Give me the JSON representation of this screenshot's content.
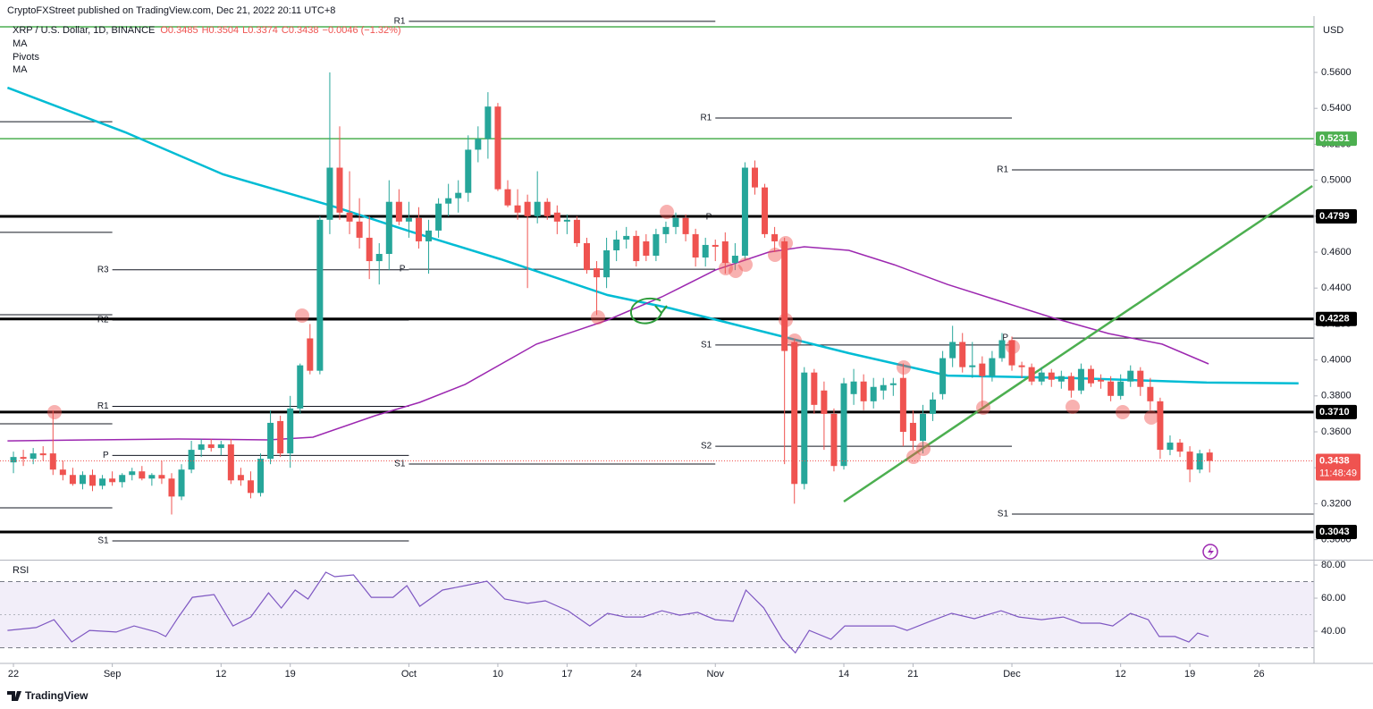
{
  "chart_data": {
    "type": "candlestick",
    "header": "CryptoFXStreet published on TradingView.com, Dec 21, 2022 20:11 UTC+8",
    "title": "XRP / U.S. Dollar, 1D, BINANCE",
    "ohlc_legend": [
      "O0.3485",
      "H0.3504",
      "L0.3374",
      "C0.3438",
      "−0.0046 (−1.32%)"
    ],
    "pivots_name": "Pivots",
    "currency": "USD",
    "footer": "TradingView",
    "up_color": "#26a69a",
    "down_color": "#ef5350",
    "xlim": [
      -1.36,
      131.56
    ],
    "xticks": [
      {
        "value": 0,
        "label": "22"
      },
      {
        "value": 10,
        "label": "Sep"
      },
      {
        "value": 21,
        "label": "12"
      },
      {
        "value": 28,
        "label": "19"
      },
      {
        "value": 40,
        "label": "Oct"
      },
      {
        "value": 49,
        "label": "10"
      },
      {
        "value": 56,
        "label": "17"
      },
      {
        "value": 63,
        "label": "24"
      },
      {
        "value": 71,
        "label": "Nov"
      },
      {
        "value": 84,
        "label": "14"
      },
      {
        "value": 91,
        "label": "21"
      },
      {
        "value": 101,
        "label": "Dec"
      },
      {
        "value": 112,
        "label": "12"
      },
      {
        "value": 119,
        "label": "19"
      },
      {
        "value": 126,
        "label": "26"
      }
    ],
    "ylim": [
      0.29,
      0.59
    ],
    "yticks": [
      {
        "value": 0.3,
        "label": "0.3000"
      },
      {
        "value": 0.32,
        "label": "0.3200"
      },
      {
        "value": 0.34,
        "label": "0.3400"
      },
      {
        "value": 0.36,
        "label": "0.3600"
      },
      {
        "value": 0.38,
        "label": "0.3800"
      },
      {
        "value": 0.4,
        "label": "0.4000"
      },
      {
        "value": 0.42,
        "label": "0.4200"
      },
      {
        "value": 0.44,
        "label": "0.4400"
      },
      {
        "value": 0.46,
        "label": "0.4600"
      },
      {
        "value": 0.48,
        "label": "0.4800"
      },
      {
        "value": 0.5,
        "label": "0.5000"
      },
      {
        "value": 0.52,
        "label": "0.5200"
      },
      {
        "value": 0.54,
        "label": "0.5400"
      },
      {
        "value": 0.56,
        "label": "0.5600"
      }
    ],
    "open": [
      0.343,
      0.346,
      0.345,
      0.348,
      0.348,
      0.339,
      0.336,
      0.331,
      0.336,
      0.33,
      0.334,
      0.332,
      0.336,
      0.338,
      0.334,
      0.336,
      0.334,
      0.324,
      0.339,
      0.35,
      0.353,
      0.351,
      0.353,
      0.336,
      0.333,
      0.326,
      0.345,
      0.366,
      0.348,
      0.373,
      0.412,
      0.394,
      0.478,
      0.507,
      0.482,
      0.477,
      0.468,
      0.455,
      0.459,
      0.488,
      0.477,
      0.479,
      0.466,
      0.472,
      0.487,
      0.49,
      0.493,
      0.517,
      0.523,
      0.541,
      0.495,
      0.486,
      0.488,
      0.48,
      0.488,
      0.482,
      0.477,
      0.478,
      0.465,
      0.451,
      0.446,
      0.461,
      0.467,
      0.469,
      0.466,
      0.458,
      0.47,
      0.474,
      0.479,
      0.47,
      0.457,
      0.464,
      0.466,
      0.454,
      0.458,
      0.507,
      0.496,
      0.47,
      0.466,
      0.41,
      0.331,
      0.393,
      0.383,
      0.37,
      0.341,
      0.381,
      0.388,
      0.377,
      0.383,
      0.386,
      0.39,
      0.365,
      0.355,
      0.37,
      0.381,
      0.401,
      0.41,
      0.396,
      0.398,
      0.391,
      0.401,
      0.411,
      0.397,
      0.396,
      0.388,
      0.393,
      0.388,
      0.391,
      0.383,
      0.395,
      0.389,
      0.388,
      0.38,
      0.388,
      0.394,
      0.385,
      0.377,
      0.35,
      0.354,
      0.349,
      0.339,
      0.3485
    ],
    "high": [
      0.349,
      0.35,
      0.351,
      0.352,
      0.372,
      0.344,
      0.34,
      0.338,
      0.339,
      0.336,
      0.338,
      0.337,
      0.34,
      0.341,
      0.337,
      0.344,
      0.337,
      0.342,
      0.355,
      0.356,
      0.356,
      0.355,
      0.356,
      0.34,
      0.338,
      0.348,
      0.372,
      0.369,
      0.38,
      0.398,
      0.42,
      0.48,
      0.56,
      0.53,
      0.505,
      0.49,
      0.48,
      0.465,
      0.5,
      0.495,
      0.488,
      0.485,
      0.478,
      0.49,
      0.498,
      0.5,
      0.525,
      0.53,
      0.549,
      0.543,
      0.5,
      0.495,
      0.492,
      0.505,
      0.49,
      0.486,
      0.481,
      0.48,
      0.468,
      0.455,
      0.468,
      0.472,
      0.474,
      0.472,
      0.47,
      0.473,
      0.477,
      0.482,
      0.481,
      0.473,
      0.468,
      0.467,
      0.471,
      0.465,
      0.51,
      0.511,
      0.498,
      0.474,
      0.468,
      0.412,
      0.396,
      0.395,
      0.388,
      0.373,
      0.39,
      0.395,
      0.392,
      0.39,
      0.39,
      0.39,
      0.398,
      0.372,
      0.375,
      0.382,
      0.405,
      0.419,
      0.415,
      0.41,
      0.402,
      0.405,
      0.415,
      0.413,
      0.399,
      0.398,
      0.396,
      0.395,
      0.394,
      0.393,
      0.398,
      0.397,
      0.392,
      0.391,
      0.392,
      0.397,
      0.396,
      0.39,
      0.379,
      0.358,
      0.356,
      0.352,
      0.35,
      0.3504
    ],
    "low": [
      0.337,
      0.341,
      0.342,
      0.344,
      0.336,
      0.333,
      0.33,
      0.328,
      0.327,
      0.328,
      0.33,
      0.329,
      0.333,
      0.333,
      0.33,
      0.331,
      0.314,
      0.322,
      0.337,
      0.346,
      0.349,
      0.347,
      0.331,
      0.33,
      0.323,
      0.324,
      0.342,
      0.346,
      0.34,
      0.37,
      0.392,
      0.392,
      0.47,
      0.478,
      0.47,
      0.462,
      0.445,
      0.442,
      0.45,
      0.475,
      0.468,
      0.462,
      0.448,
      0.468,
      0.48,
      0.482,
      0.488,
      0.51,
      0.512,
      0.494,
      0.485,
      0.478,
      0.44,
      0.476,
      0.478,
      0.47,
      0.47,
      0.463,
      0.448,
      0.425,
      0.44,
      0.455,
      0.462,
      0.452,
      0.455,
      0.455,
      0.465,
      0.47,
      0.466,
      0.452,
      0.452,
      0.455,
      0.448,
      0.45,
      0.456,
      0.492,
      0.468,
      0.46,
      0.342,
      0.32,
      0.328,
      0.37,
      0.35,
      0.338,
      0.339,
      0.375,
      0.372,
      0.373,
      0.378,
      0.38,
      0.352,
      0.35,
      0.348,
      0.366,
      0.378,
      0.396,
      0.393,
      0.39,
      0.374,
      0.388,
      0.399,
      0.394,
      0.39,
      0.386,
      0.386,
      0.385,
      0.384,
      0.379,
      0.381,
      0.385,
      0.384,
      0.377,
      0.378,
      0.385,
      0.38,
      0.372,
      0.345,
      0.347,
      0.346,
      0.332,
      0.337,
      0.3374
    ],
    "close": [
      0.346,
      0.345,
      0.348,
      0.347,
      0.339,
      0.336,
      0.331,
      0.336,
      0.33,
      0.334,
      0.332,
      0.336,
      0.338,
      0.334,
      0.336,
      0.334,
      0.324,
      0.339,
      0.35,
      0.353,
      0.351,
      0.353,
      0.333,
      0.333,
      0.326,
      0.345,
      0.365,
      0.348,
      0.373,
      0.397,
      0.394,
      0.478,
      0.507,
      0.482,
      0.477,
      0.468,
      0.455,
      0.459,
      0.488,
      0.477,
      0.479,
      0.466,
      0.472,
      0.487,
      0.49,
      0.493,
      0.517,
      0.523,
      0.541,
      0.495,
      0.486,
      0.482,
      0.48,
      0.488,
      0.48,
      0.477,
      0.478,
      0.465,
      0.45,
      0.446,
      0.461,
      0.467,
      0.469,
      0.455,
      0.458,
      0.47,
      0.474,
      0.479,
      0.47,
      0.457,
      0.464,
      0.463,
      0.454,
      0.458,
      0.507,
      0.496,
      0.47,
      0.466,
      0.405,
      0.331,
      0.393,
      0.375,
      0.37,
      0.341,
      0.387,
      0.388,
      0.377,
      0.385,
      0.386,
      0.387,
      0.36,
      0.355,
      0.37,
      0.378,
      0.401,
      0.41,
      0.396,
      0.397,
      0.391,
      0.401,
      0.411,
      0.397,
      0.396,
      0.388,
      0.393,
      0.389,
      0.391,
      0.383,
      0.395,
      0.387,
      0.388,
      0.38,
      0.388,
      0.394,
      0.385,
      0.377,
      0.35,
      0.354,
      0.349,
      0.339,
      0.348,
      0.3438
    ],
    "ma": [
      {
        "name": "MA",
        "color": "#00bcd4",
        "x": [
          -0.6,
          11.3,
          21.2,
          32.1,
          40.2,
          49.3,
          60.1,
          66.5,
          75.5,
          84.5,
          94.5,
          107.1,
          120.7,
          130
        ],
        "values": [
          0.5515,
          0.5267,
          0.5033,
          0.4859,
          0.4714,
          0.456,
          0.4361,
          0.4287,
          0.4162,
          0.4038,
          0.3913,
          0.3899,
          0.3874,
          0.387
        ]
      },
      {
        "name": "MA",
        "color": "#9c27b0",
        "x": [
          -0.6,
          7.7,
          16.7,
          25.8,
          30.3,
          36.6,
          41.1,
          45.7,
          52.9,
          60.1,
          65.6,
          71,
          76.4,
          80,
          84.5,
          89.1,
          94.5,
          99.9,
          105.3,
          110.8,
          116.2,
          120.9
        ],
        "values": [
          0.355,
          0.3555,
          0.356,
          0.3555,
          0.357,
          0.369,
          0.3764,
          0.3864,
          0.4088,
          0.4222,
          0.4351,
          0.45,
          0.46,
          0.463,
          0.461,
          0.453,
          0.442,
          0.4326,
          0.4232,
          0.4147,
          0.4088,
          0.3978
        ]
      }
    ],
    "trendline": {
      "color": "#4caf50",
      "x": [
        84,
        131.4
      ],
      "values": [
        0.3212,
        0.4968
      ]
    },
    "levels": [
      {
        "value": 0.5854,
        "color": "#4caf50"
      },
      {
        "value": 0.5231,
        "label": "0.5231",
        "color": "#4caf50"
      },
      {
        "value": 0.4799,
        "label": "0.4799",
        "color": "#000000"
      },
      {
        "value": 0.4228,
        "label": "0.4228",
        "color": "#000000"
      },
      {
        "value": 0.371,
        "label": "0.3710",
        "color": "#000000"
      },
      {
        "value": 0.3043,
        "label": "0.3043",
        "color": "#000000"
      }
    ],
    "pivots": [
      {
        "value": 0.5326,
        "from": -1.36,
        "to": 10
      },
      {
        "value": 0.471,
        "from": -1.36,
        "to": 10
      },
      {
        "value": 0.4252,
        "from": -1.36,
        "to": 10
      },
      {
        "value": 0.3645,
        "from": -1.36,
        "to": 10
      },
      {
        "value": 0.3177,
        "from": -1.36,
        "to": 10
      },
      {
        "label": "R3",
        "value": 0.4502,
        "from": 10,
        "to": 40
      },
      {
        "label": "R2",
        "value": 0.4222,
        "from": 10,
        "to": 40
      },
      {
        "label": "R1",
        "value": 0.3742,
        "from": 10,
        "to": 40
      },
      {
        "label": "P",
        "value": 0.3469,
        "from": 10,
        "to": 40
      },
      {
        "label": "S1",
        "value": 0.2993,
        "from": 10,
        "to": 40
      },
      {
        "label": "R1",
        "value": 0.5884,
        "from": 40,
        "to": 71
      },
      {
        "label": "P",
        "value": 0.4505,
        "from": 40,
        "to": 71
      },
      {
        "label": "S1",
        "value": 0.3421,
        "from": 40,
        "to": 71
      },
      {
        "label": "R1",
        "value": 0.5346,
        "from": 71,
        "to": 101
      },
      {
        "label": "P",
        "value": 0.4794,
        "from": 71,
        "to": 101
      },
      {
        "label": "S1",
        "value": 0.4083,
        "from": 71,
        "to": 101
      },
      {
        "label": "S2",
        "value": 0.352,
        "from": 71,
        "to": 101
      },
      {
        "label": "R1",
        "value": 0.5058,
        "from": 101,
        "to": 131.56
      },
      {
        "label": "P",
        "value": 0.4122,
        "from": 101,
        "to": 131.56
      },
      {
        "label": "S1",
        "value": 0.3142,
        "from": 101,
        "to": 131.56
      }
    ],
    "last_price": {
      "value": 0.3438,
      "label": "0.3438",
      "countdown": "11:48:49",
      "color": "#ef5350"
    },
    "rsi": {
      "name": "RSI",
      "color": "#7e57c2",
      "ylim": [
        20,
        83
      ],
      "yticks": [
        {
          "value": 80,
          "label": "80.00"
        },
        {
          "value": 60,
          "label": "60.00"
        },
        {
          "value": 40,
          "label": "40.00"
        }
      ],
      "band": [
        30,
        70
      ],
      "midline": 50,
      "x": [
        -0.6,
        2.3,
        4.1,
        5.9,
        7.7,
        10.4,
        12.2,
        14.5,
        15.4,
        16.7,
        18.1,
        20.3,
        22.2,
        24.0,
        25.8,
        27.1,
        28.5,
        29.8,
        31.6,
        32.5,
        34.4,
        36.2,
        38.4,
        39.8,
        41.1,
        43.4,
        45.7,
        47.9,
        49.7,
        52.0,
        53.8,
        56.1,
        58.3,
        60.1,
        61.9,
        63.7,
        65.6,
        67.4,
        69.2,
        71.0,
        72.8,
        74.1,
        75.9,
        77.8,
        79.1,
        80.5,
        82.7,
        84.1,
        86.3,
        89.1,
        90.4,
        92.7,
        94.9,
        97.2,
        99.9,
        101.7,
        104.0,
        106.2,
        108.0,
        109.9,
        111.2,
        113.0,
        114.8,
        115.9,
        117.5,
        118.9,
        119.8,
        120.9
      ],
      "values": [
        40.5,
        42.2,
        47.0,
        33.5,
        40.5,
        39.5,
        43.2,
        39.5,
        36.8,
        48.6,
        60.5,
        62.2,
        43.2,
        48.6,
        63.2,
        54.0,
        64.9,
        59.5,
        75.7,
        73.0,
        74.1,
        60.5,
        60.5,
        67.6,
        55.1,
        64.9,
        67.6,
        70.3,
        59.5,
        56.8,
        58.4,
        52.4,
        43.2,
        50.8,
        48.6,
        48.6,
        52.4,
        49.7,
        51.4,
        47.0,
        46.0,
        64.9,
        54.1,
        35.1,
        27.0,
        40.5,
        35.1,
        43.2,
        43.2,
        43.2,
        40.5,
        45.9,
        50.8,
        47.6,
        52.4,
        48.6,
        47.0,
        48.6,
        44.9,
        44.9,
        43.2,
        50.8,
        47.0,
        36.8,
        36.8,
        33.5,
        38.9,
        36.8
      ]
    }
  }
}
